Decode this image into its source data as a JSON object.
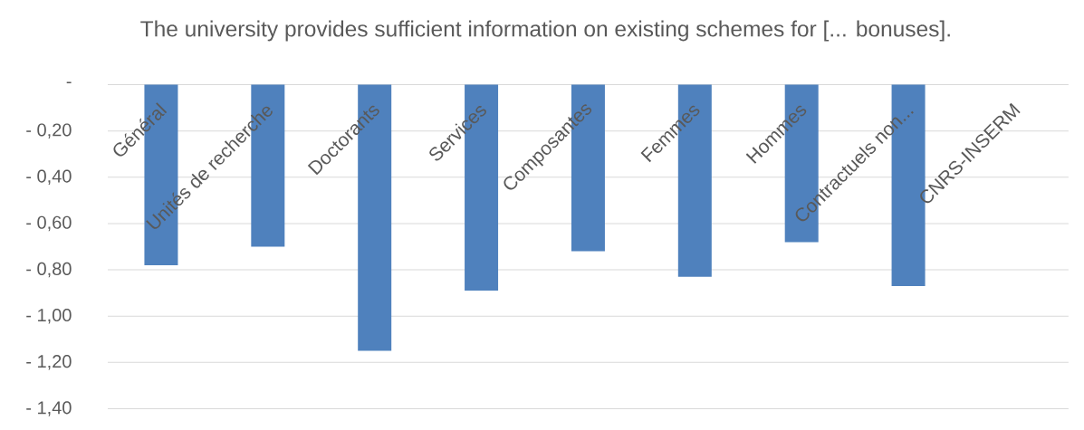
{
  "chart_data": {
    "type": "bar",
    "title": "The university provides sufficient information on existing schemes for [... bonuses].",
    "categories": [
      "Général",
      "Unités de recherche",
      "Doctorants",
      "Services",
      "Composantes",
      "Femmes",
      "Hommes",
      "Contractuels non...",
      "CNRS-INSERM"
    ],
    "values": [
      -0.78,
      -0.7,
      -1.15,
      -0.89,
      -0.72,
      -0.83,
      -0.68,
      -0.87,
      null
    ],
    "color": "#4f81bd",
    "ylim": [
      -1.4,
      0
    ],
    "yticks": [
      {
        "value": 0,
        "label": "-"
      },
      {
        "value": -0.2,
        "label": "- 0,20"
      },
      {
        "value": -0.4,
        "label": "- 0,40"
      },
      {
        "value": -0.6,
        "label": "- 0,60"
      },
      {
        "value": -0.8,
        "label": "- 0,80"
      },
      {
        "value": -1.0,
        "label": "- 1,00"
      },
      {
        "value": -1.2,
        "label": "- 1,20"
      },
      {
        "value": -1.4,
        "label": "- 1,40"
      }
    ],
    "grid": "y"
  }
}
